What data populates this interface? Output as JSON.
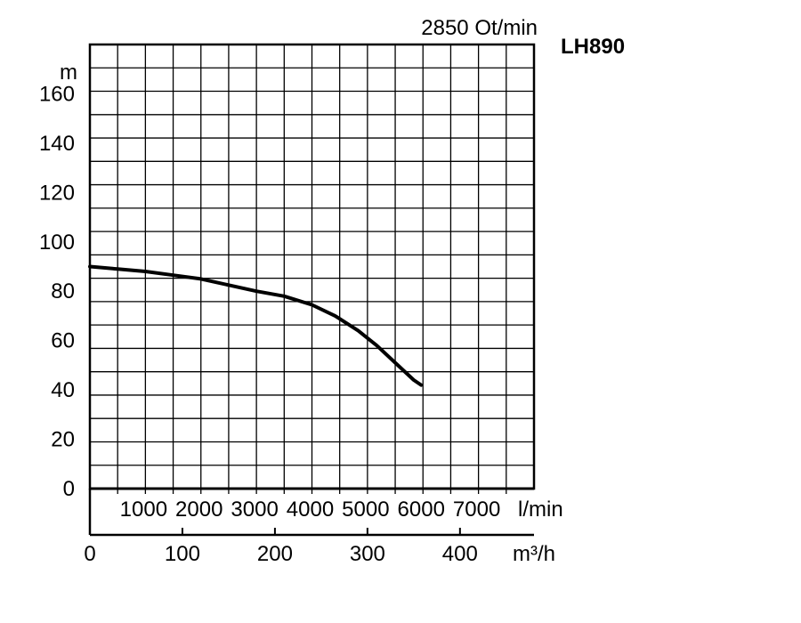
{
  "header": {
    "speed": "2850 Ot/min",
    "model": "LH890"
  },
  "chart_data": {
    "type": "line",
    "grid": true,
    "y_unit": "m",
    "ylim": [
      0,
      180
    ],
    "y_ticks": [
      0,
      20,
      40,
      60,
      80,
      100,
      120,
      140,
      160
    ],
    "y_tick_labels": [
      "0",
      "20",
      "40",
      "60",
      "80",
      "100",
      "120",
      "140",
      "160"
    ],
    "lmin_unit": "l/min",
    "lmin_ticks": [
      1000,
      2000,
      3000,
      4000,
      5000,
      6000,
      7000
    ],
    "lmin_tick_labels": [
      "1000",
      "2000",
      "3000",
      "4000",
      "5000",
      "6000",
      "7000"
    ],
    "x_unit": "m³/h",
    "xlim": [
      0,
      480
    ],
    "x_ticks": [
      0,
      100,
      200,
      300,
      400
    ],
    "x_tick_labels": [
      "0",
      "100",
      "200",
      "300",
      "400"
    ],
    "series": [
      {
        "x": [
          0,
          30,
          60,
          90,
          120,
          150,
          180,
          210,
          240,
          265,
          290,
          310,
          330,
          350,
          358
        ],
        "y": [
          90,
          89,
          88,
          86.5,
          85,
          82.5,
          80,
          78,
          74.5,
          70,
          64,
          58,
          51,
          44,
          42
        ],
        "color": "#000000"
      }
    ]
  }
}
